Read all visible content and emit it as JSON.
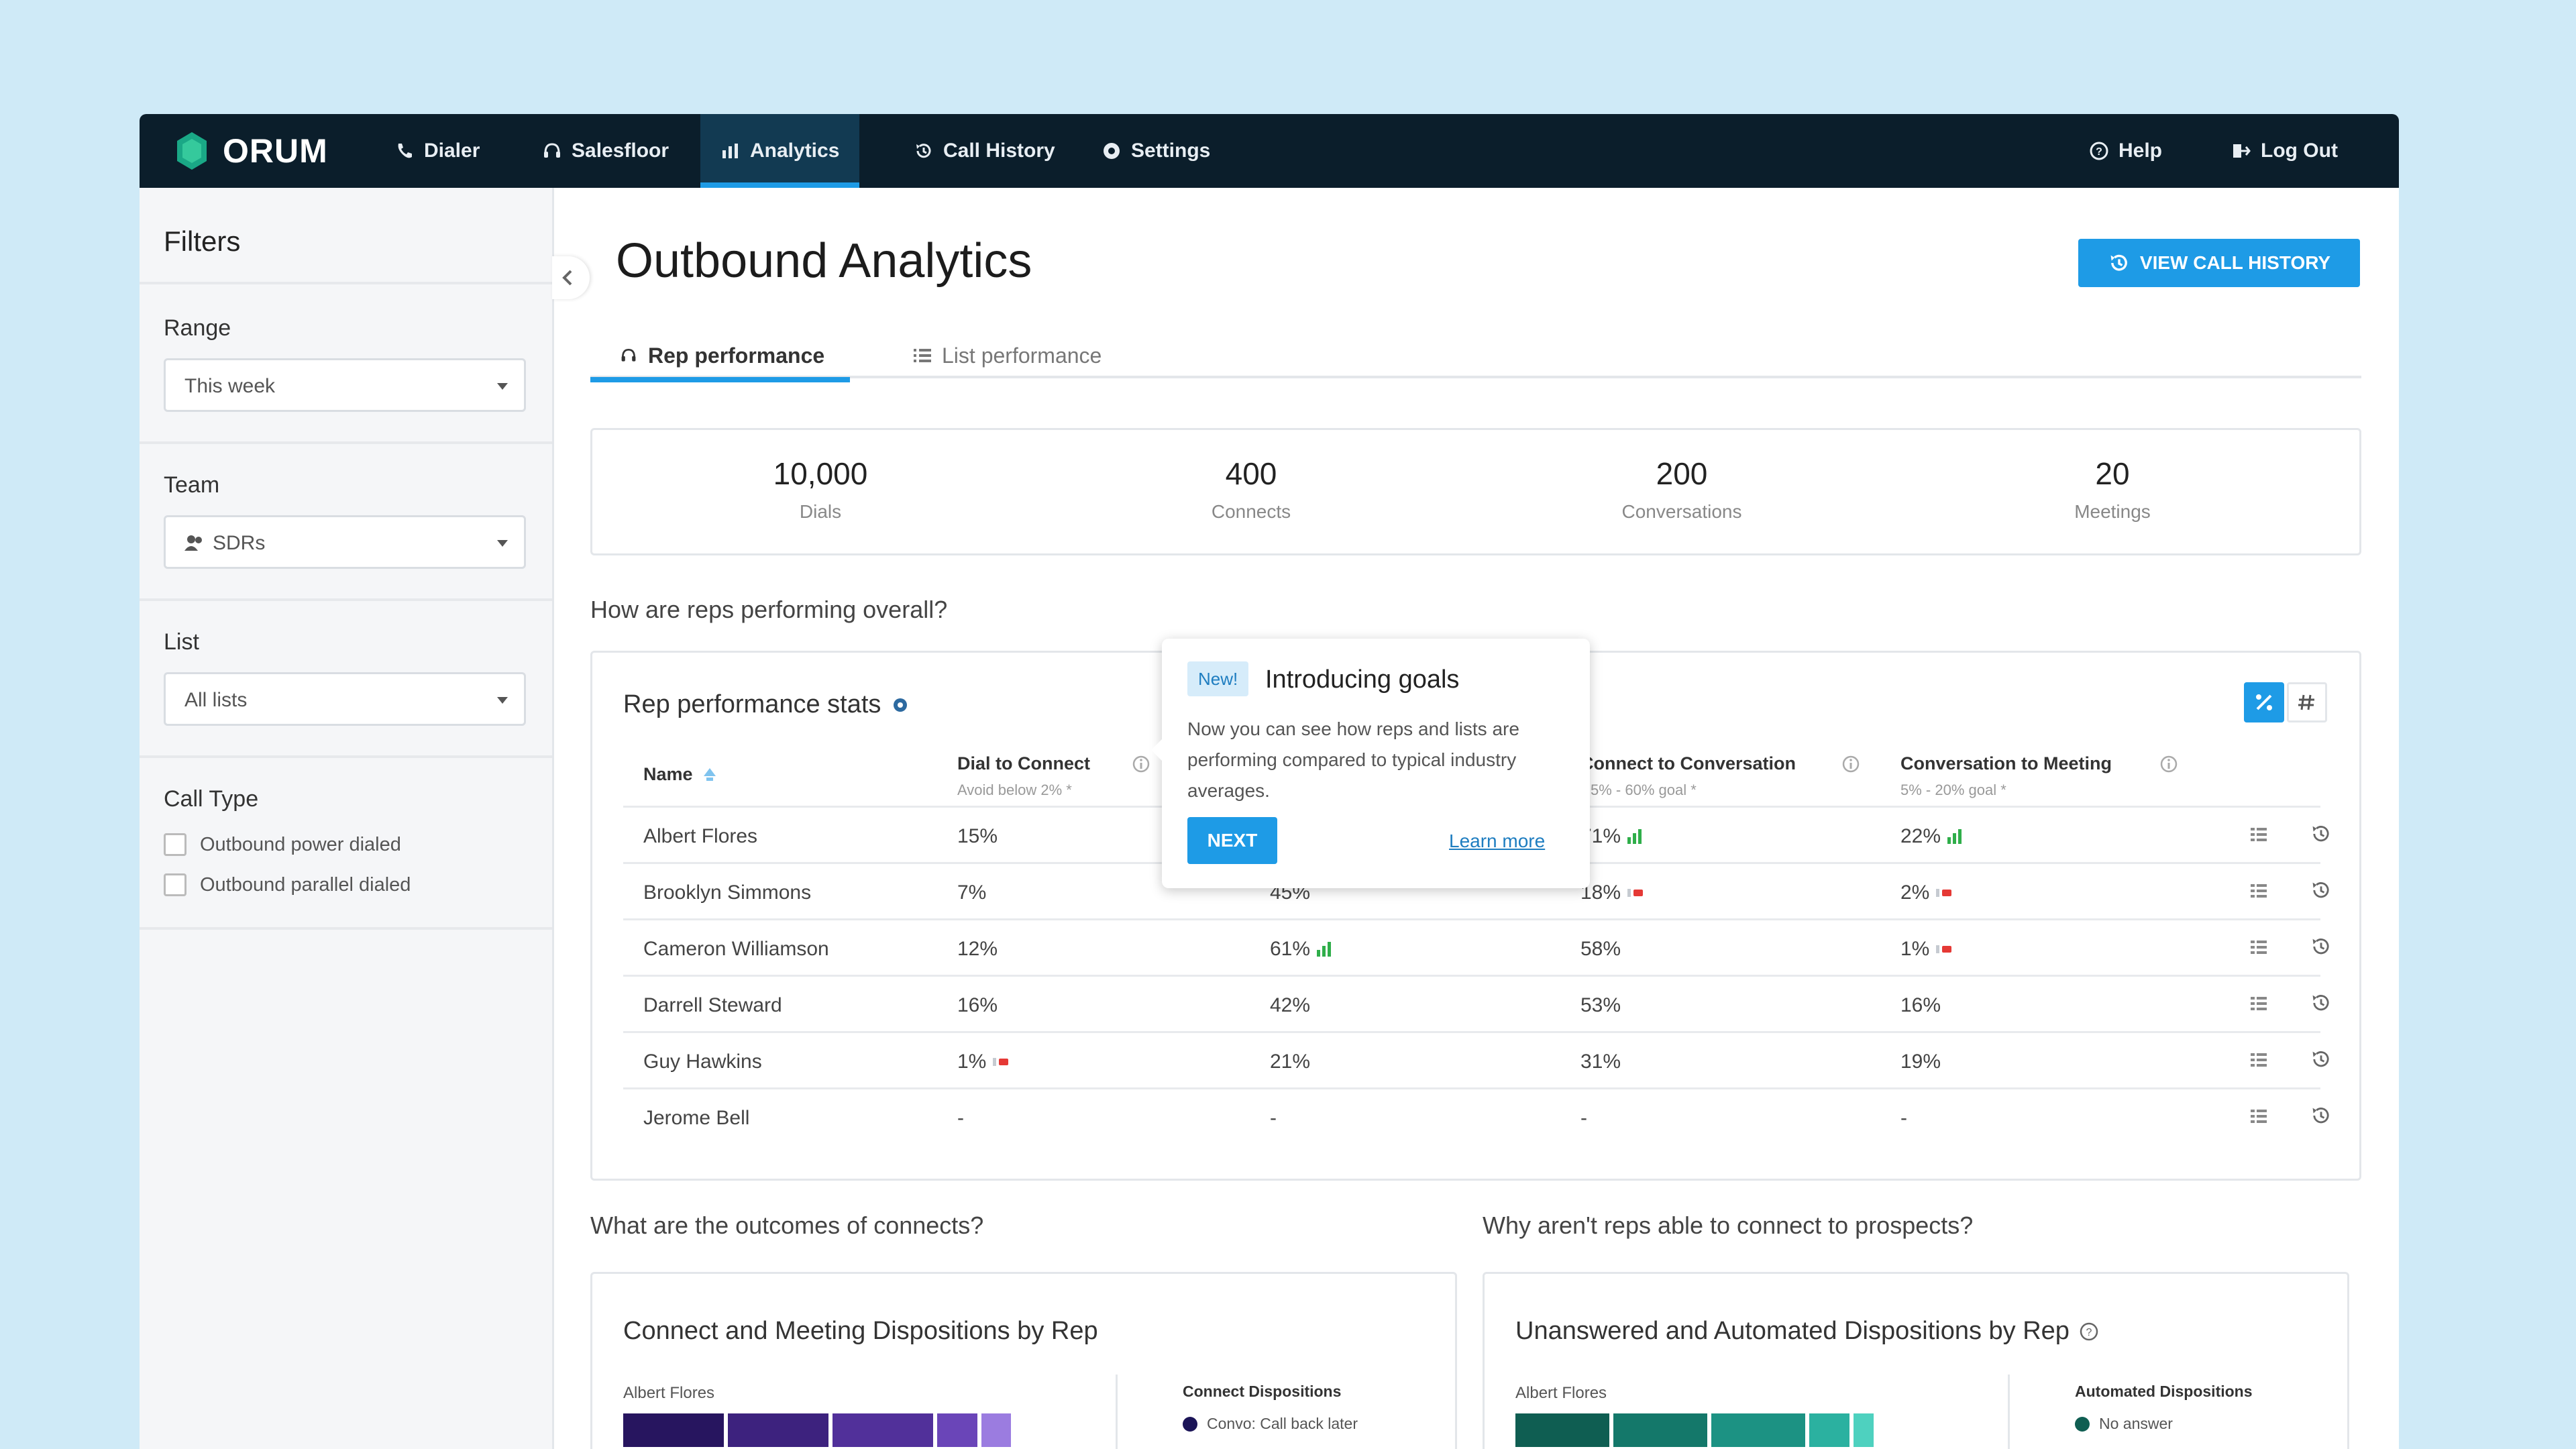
{
  "nav": {
    "brand": "ORUM",
    "items": [
      {
        "label": "Dialer",
        "icon": "phone-icon"
      },
      {
        "label": "Salesfloor",
        "icon": "headset-icon"
      },
      {
        "label": "Analytics",
        "icon": "bar-chart-icon",
        "active": true
      },
      {
        "label": "Call History",
        "icon": "history-icon"
      },
      {
        "label": "Settings",
        "icon": "gear-icon"
      }
    ],
    "help": "Help",
    "logout": "Log Out"
  },
  "sidebar": {
    "title": "Filters",
    "range": {
      "label": "Range",
      "value": "This week"
    },
    "team": {
      "label": "Team",
      "value": "SDRs"
    },
    "list": {
      "label": "List",
      "value": "All lists"
    },
    "call_type": {
      "label": "Call Type",
      "options": [
        "Outbound power dialed",
        "Outbound parallel dialed"
      ]
    }
  },
  "main": {
    "title": "Outbound Analytics",
    "view_call_history": "VIEW CALL HISTORY",
    "tabs": [
      "Rep performance",
      "List performance"
    ],
    "stats": [
      {
        "value": "10,000",
        "label": "Dials"
      },
      {
        "value": "400",
        "label": "Connects"
      },
      {
        "value": "200",
        "label": "Conversations"
      },
      {
        "value": "20",
        "label": "Meetings"
      }
    ],
    "question_overall": "How are reps performing overall?",
    "rep_card": {
      "title": "Rep performance stats",
      "columns": {
        "name": "Name",
        "dial_to_connect": "Dial to Connect",
        "dial_to_connect_goal": "Avoid below 2% *",
        "connect_to_conversation": "Connect to Conversation",
        "connect_to_conversation_goal": "5% - 60% goal *",
        "conversation_to_meeting": "Conversation to Meeting",
        "conversation_to_meeting_goal": "5% - 20% goal *"
      },
      "rows": [
        {
          "name": "Albert Flores",
          "dtc": "15%",
          "ctc": "",
          "ctconv": "71%",
          "ctm": "22%",
          "ctconv_flag": "up",
          "ctm_flag": "up"
        },
        {
          "name": "Brooklyn Simmons",
          "dtc": "7%",
          "ctc": "45%",
          "ctconv": "18%",
          "ctm": "2%",
          "ctconv_flag": "down",
          "ctm_flag": "down"
        },
        {
          "name": "Cameron Williamson",
          "dtc": "12%",
          "ctc": "61%",
          "ctconv": "58%",
          "ctm": "1%",
          "ctc_flag": "up",
          "ctm_flag": "down"
        },
        {
          "name": "Darrell Steward",
          "dtc": "16%",
          "ctc": "42%",
          "ctconv": "53%",
          "ctm": "16%"
        },
        {
          "name": "Guy Hawkins",
          "dtc": "1%",
          "ctc": "21%",
          "ctconv": "31%",
          "ctm": "19%",
          "dtc_flag": "down"
        },
        {
          "name": "Jerome Bell",
          "dtc": "-",
          "ctc": "-",
          "ctconv": "-",
          "ctm": "-"
        }
      ]
    },
    "popover": {
      "badge": "New!",
      "title": "Introducing goals",
      "text": "Now you can see how reps and lists are performing compared to typical industry averages.",
      "next": "NEXT",
      "learn_more": "Learn more"
    },
    "question_outcomes": "What are the outcomes of connects?",
    "question_why": "Why aren't reps able to connect to prospects?",
    "card_connect": {
      "title": "Connect and Meeting Dispositions by Rep",
      "rep": "Albert Flores",
      "legend_title": "Connect Dispositions",
      "legend_item": "Convo: Call back later",
      "colors": [
        "#27155f",
        "#3d227e",
        "#51309a",
        "#6a45b8",
        "#9b7ce0"
      ]
    },
    "card_unanswered": {
      "title": "Unanswered and Automated Dispositions by Rep",
      "rep": "Albert Flores",
      "legend_title": "Automated Dispositions",
      "legend_item": "No answer",
      "colors": [
        "#0f5e52",
        "#14786a",
        "#1c9283",
        "#2bb1a0",
        "#4ed1bf"
      ]
    }
  }
}
